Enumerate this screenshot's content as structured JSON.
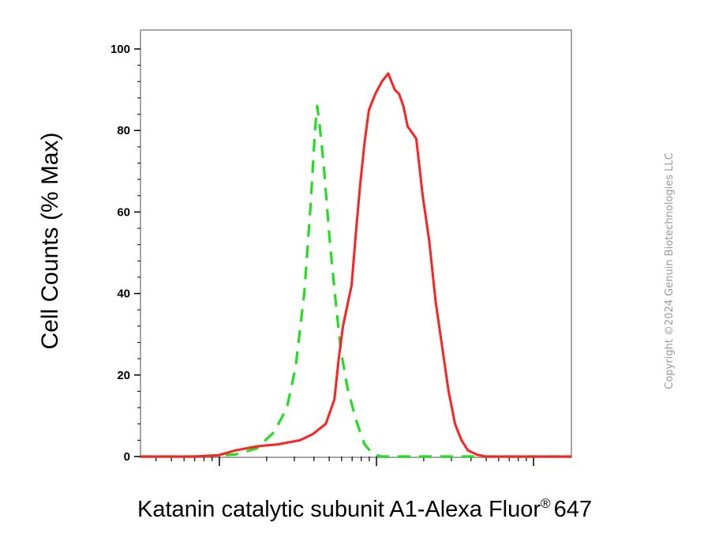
{
  "chart_data": {
    "type": "line",
    "title": "",
    "xlabel": "Katanin catalytic subunit A1-Alexa Fluor",
    "xlabel_superscript": "®",
    "xlabel_suffix": "647",
    "ylabel": "Cell Counts (% Max)",
    "x_scale": "log (histogram channel, unlabeled major ticks)",
    "ylim": [
      0,
      100
    ],
    "yticks": [
      0,
      20,
      40,
      60,
      80,
      100
    ],
    "grid": false,
    "legend": "none",
    "series": [
      {
        "style": "dashed",
        "color": "#22dd22",
        "points": [
          [
            0.0,
            0
          ],
          [
            0.12,
            0
          ],
          [
            0.22,
            0.5
          ],
          [
            0.27,
            2
          ],
          [
            0.31,
            6
          ],
          [
            0.34,
            12
          ],
          [
            0.36,
            22
          ],
          [
            0.38,
            40
          ],
          [
            0.395,
            62
          ],
          [
            0.405,
            80
          ],
          [
            0.41,
            86
          ],
          [
            0.415,
            82
          ],
          [
            0.425,
            72
          ],
          [
            0.44,
            52
          ],
          [
            0.455,
            36
          ],
          [
            0.465,
            26
          ],
          [
            0.48,
            17
          ],
          [
            0.5,
            9
          ],
          [
            0.52,
            3
          ],
          [
            0.54,
            0.5
          ],
          [
            0.56,
            0
          ],
          [
            1.0,
            0
          ]
        ]
      },
      {
        "style": "solid",
        "color": "#ff2020",
        "points": [
          [
            0.0,
            0
          ],
          [
            0.12,
            0
          ],
          [
            0.18,
            0.3
          ],
          [
            0.22,
            1.5
          ],
          [
            0.27,
            2.5
          ],
          [
            0.32,
            3
          ],
          [
            0.37,
            4
          ],
          [
            0.4,
            5.5
          ],
          [
            0.43,
            8
          ],
          [
            0.45,
            14
          ],
          [
            0.46,
            24
          ],
          [
            0.47,
            32
          ],
          [
            0.49,
            42
          ],
          [
            0.5,
            55
          ],
          [
            0.51,
            67
          ],
          [
            0.52,
            77
          ],
          [
            0.53,
            85
          ],
          [
            0.545,
            89
          ],
          [
            0.56,
            92
          ],
          [
            0.575,
            94
          ],
          [
            0.59,
            90
          ],
          [
            0.6,
            89
          ],
          [
            0.61,
            86
          ],
          [
            0.62,
            81
          ],
          [
            0.64,
            78
          ],
          [
            0.655,
            64
          ],
          [
            0.67,
            53
          ],
          [
            0.685,
            38
          ],
          [
            0.7,
            27
          ],
          [
            0.715,
            16
          ],
          [
            0.73,
            8
          ],
          [
            0.745,
            4
          ],
          [
            0.76,
            1.5
          ],
          [
            0.78,
            0.5
          ],
          [
            0.8,
            0
          ],
          [
            1.0,
            0
          ]
        ]
      }
    ]
  },
  "watermark": "Copyright ©2024 Genuin Biotechnologies LLC"
}
